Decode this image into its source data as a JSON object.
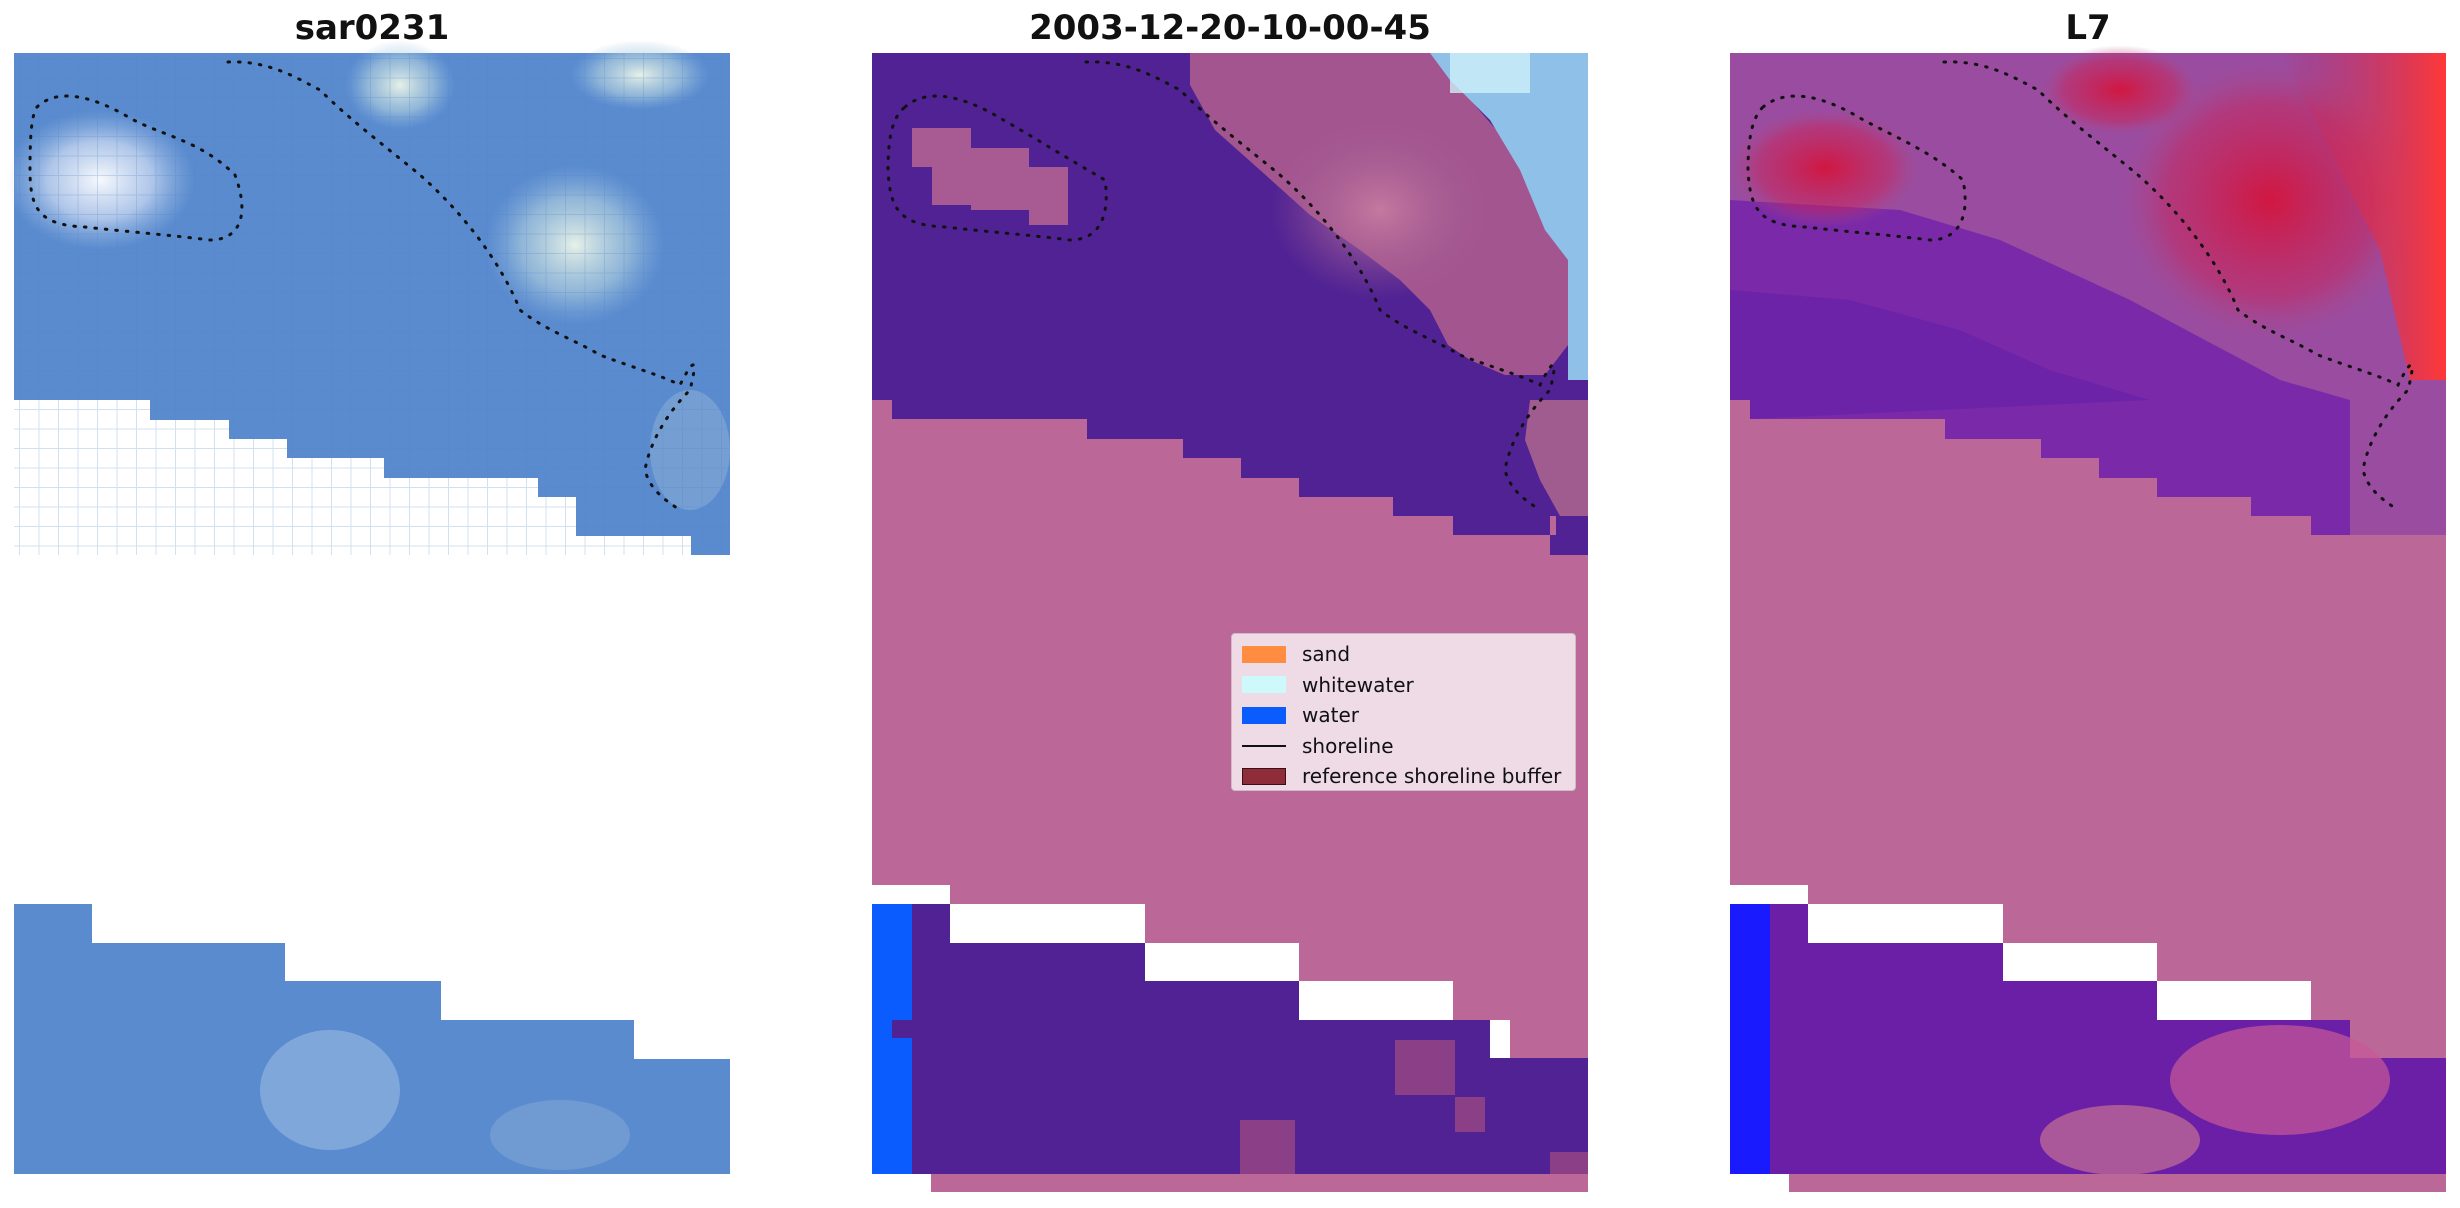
{
  "panels": [
    {
      "title": "sar0231"
    },
    {
      "title": "2003-12-20-10-00-45"
    },
    {
      "title": "L7"
    }
  ],
  "legend": {
    "items": [
      {
        "label": "sand",
        "kind": "patch",
        "color": "#ff8c40"
      },
      {
        "label": "whitewater",
        "kind": "patch",
        "color": "#cdf9fb"
      },
      {
        "label": "water",
        "kind": "patch",
        "color": "#0a5cff"
      },
      {
        "label": "shoreline",
        "kind": "line",
        "color": "#111111"
      },
      {
        "label": "reference shoreline buffer",
        "kind": "patch",
        "color": "#8f2c3a"
      }
    ]
  },
  "colors": {
    "rgb_water_blue": "#5887c9",
    "class_dark_purple": "#502293",
    "buffer_pink": "#bb6797",
    "class_water": "#0a5cff",
    "l7_red": "#e8203a",
    "l7_blue": "#1a1aff"
  }
}
